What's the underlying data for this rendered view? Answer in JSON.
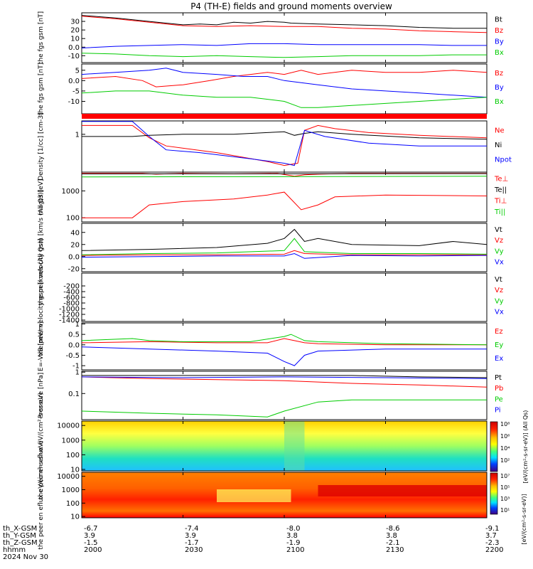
{
  "title": "P4 (TH-E) fields and ground moments overview",
  "footer": {
    "row_labels": [
      "th_X-GSM",
      "th_Y-GSM",
      "th_Z-GSM",
      "hhmm",
      "2024 Nov 30"
    ],
    "x_gsm": [
      "-6.7",
      "-7.4",
      "-8.0",
      "-8.6",
      "-9.1"
    ],
    "y_gsm": [
      "3.9",
      "3.9",
      "3.8",
      "3.8",
      "3.7"
    ],
    "z_gsm": [
      "-1.5",
      "-1.7",
      "-1.9",
      "-2.1",
      "-2.3"
    ],
    "hhmm": [
      "2000",
      "2030",
      "2100",
      "2130",
      "2200"
    ]
  },
  "colorbars": [
    {
      "label": "[eV/(cm²-s-sr-eV)] (All Qs)",
      "ticks": [
        "10⁸",
        "10⁶",
        "10⁴",
        "10²"
      ]
    },
    {
      "label": "[eV/(cm²-s-sr-eV)]",
      "ticks": [
        "10⁷",
        "10⁵",
        "10³",
        "10¹"
      ]
    }
  ],
  "chart_data": [
    {
      "type": "line",
      "ylabel": "the fgs gsm [nT]",
      "ylim": [
        -18,
        40
      ],
      "yticks": [
        -10,
        0,
        10,
        20,
        30
      ],
      "series": [
        {
          "name": "Bt",
          "color": "#000000",
          "x": [
            0,
            10,
            20,
            30,
            35,
            40,
            45,
            50,
            55,
            60,
            62,
            70,
            80,
            90,
            100,
            110,
            120
          ],
          "y": [
            37,
            34,
            30,
            26,
            27,
            26,
            29,
            28,
            30,
            29,
            28,
            27,
            26,
            25,
            23,
            22,
            22
          ]
        },
        {
          "name": "Bz",
          "color": "#ff0000",
          "x": [
            0,
            10,
            20,
            30,
            40,
            50,
            60,
            70,
            80,
            90,
            100,
            110,
            120
          ],
          "y": [
            36,
            33,
            29,
            25,
            24,
            25,
            24,
            24,
            22,
            21,
            19,
            18,
            17
          ]
        },
        {
          "name": "By",
          "color": "#0000ff",
          "x": [
            0,
            10,
            20,
            30,
            40,
            50,
            60,
            70,
            80,
            90,
            100,
            110,
            120
          ],
          "y": [
            -1,
            1,
            2,
            3,
            2,
            4,
            4,
            3,
            3,
            3,
            3,
            2,
            2
          ]
        },
        {
          "name": "Bx",
          "color": "#00cc00",
          "x": [
            0,
            10,
            20,
            30,
            40,
            50,
            60,
            70,
            80,
            90,
            100,
            110,
            120
          ],
          "y": [
            -7,
            -8,
            -10,
            -11,
            -10,
            -11,
            -12,
            -11,
            -10,
            -10,
            -10,
            -9,
            -9
          ]
        }
      ]
    },
    {
      "type": "line",
      "ylabel": "the fgs gsm [nT]",
      "ylim": [
        -16,
        8
      ],
      "yticks": [
        -10,
        -5,
        0,
        5
      ],
      "series": [
        {
          "name": "Bz",
          "color": "#ff0000",
          "x": [
            0,
            10,
            18,
            22,
            30,
            38,
            45,
            55,
            60,
            65,
            70,
            80,
            90,
            100,
            110,
            120
          ],
          "y": [
            1,
            2,
            0,
            -3,
            -2,
            0,
            2,
            4,
            3,
            5,
            3,
            5,
            4,
            4,
            5,
            4
          ]
        },
        {
          "name": "By",
          "color": "#0000ff",
          "x": [
            0,
            10,
            20,
            25,
            30,
            40,
            48,
            55,
            60,
            70,
            80,
            90,
            100,
            110,
            120
          ],
          "y": [
            3,
            4,
            5,
            6,
            4,
            3,
            2,
            2,
            0,
            -2,
            -4,
            -5,
            -6,
            -7,
            -8
          ]
        },
        {
          "name": "Bx",
          "color": "#00cc00",
          "x": [
            0,
            10,
            20,
            30,
            40,
            50,
            60,
            65,
            70,
            80,
            90,
            100,
            110,
            120
          ],
          "y": [
            -6,
            -5,
            -5,
            -7,
            -8,
            -8,
            -10,
            -13,
            -13,
            -12,
            -11,
            -10,
            -9,
            -8
          ]
        }
      ]
    },
    {
      "type": "line",
      "ylabel": "Density [1/cc] [cm-3]",
      "yscale": "log",
      "ylim": [
        0.02,
        4
      ],
      "yticks": [
        1
      ],
      "series": [
        {
          "name": "Ne",
          "color": "#ff0000",
          "x": [
            0,
            15,
            20,
            25,
            40,
            55,
            60,
            64,
            66,
            70,
            75,
            85,
            100,
            120
          ],
          "y": [
            2.5,
            2.5,
            0.7,
            0.3,
            0.15,
            0.06,
            0.04,
            0.05,
            1.5,
            2.5,
            1.8,
            1.2,
            0.9,
            0.7
          ]
        },
        {
          "name": "Ni",
          "color": "#000000",
          "x": [
            0,
            15,
            20,
            30,
            45,
            55,
            60,
            63,
            66,
            70,
            80,
            100,
            120
          ],
          "y": [
            0.8,
            0.8,
            0.9,
            1.0,
            1.0,
            1.2,
            1.3,
            0.9,
            1.1,
            1.3,
            1.0,
            0.7,
            0.6
          ]
        },
        {
          "name": "Npot",
          "color": "#0000ff",
          "x": [
            0,
            15,
            20,
            25,
            35,
            50,
            60,
            63,
            66,
            72,
            85,
            100,
            120
          ],
          "y": [
            3.8,
            3.8,
            0.8,
            0.2,
            0.15,
            0.08,
            0.05,
            0.04,
            1.5,
            0.8,
            0.4,
            0.3,
            0.3
          ]
        }
      ]
    },
    {
      "type": "line",
      "ylabel": "magt3 [eV]",
      "yscale": "log",
      "ylim": [
        70,
        5000
      ],
      "yticks": [
        100,
        1000
      ],
      "series": [
        {
          "name": "Te⊥",
          "color": "#ff0000",
          "x": [
            0,
            18,
            22,
            30,
            45,
            58,
            63,
            66,
            70,
            80,
            100,
            120
          ],
          "y": [
            4500,
            4500,
            4200,
            4500,
            4300,
            4500,
            3500,
            4000,
            4200,
            4500,
            4500,
            4500
          ]
        },
        {
          "name": "Te||",
          "color": "#000000",
          "x": [
            0,
            120
          ],
          "y": [
            4300,
            4400
          ]
        },
        {
          "name": "Ti⊥",
          "color": "#ff0000",
          "x": [
            0,
            15,
            20,
            30,
            45,
            55,
            60,
            65,
            70,
            75,
            90,
            120
          ],
          "y": [
            100,
            100,
            300,
            400,
            500,
            700,
            900,
            200,
            300,
            600,
            700,
            650
          ]
        },
        {
          "name": "Ti||",
          "color": "#00cc00",
          "x": [
            0,
            120
          ],
          "y": [
            3300,
            3500
          ]
        }
      ]
    },
    {
      "type": "line",
      "ylabel": "the peir velocity gsm [km/s (All Qs)]",
      "ylim": [
        -25,
        55
      ],
      "yticks": [
        -20,
        0,
        20,
        40
      ],
      "series": [
        {
          "name": "Vt",
          "color": "#000000",
          "x": [
            0,
            20,
            40,
            55,
            60,
            63,
            66,
            70,
            80,
            100,
            110,
            120
          ],
          "y": [
            10,
            12,
            15,
            22,
            30,
            45,
            25,
            30,
            20,
            18,
            25,
            20
          ]
        },
        {
          "name": "Vz",
          "color": "#ff0000",
          "x": [
            0,
            20,
            40,
            60,
            63,
            66,
            80,
            100,
            120
          ],
          "y": [
            2,
            3,
            3,
            4,
            10,
            5,
            3,
            3,
            3
          ]
        },
        {
          "name": "Vy",
          "color": "#00cc00",
          "x": [
            0,
            20,
            40,
            60,
            63,
            66,
            80,
            100,
            120
          ],
          "y": [
            3,
            5,
            6,
            10,
            30,
            8,
            5,
            5,
            4
          ]
        },
        {
          "name": "Vx",
          "color": "#0000ff",
          "x": [
            0,
            20,
            40,
            60,
            63,
            66,
            80,
            100,
            120
          ],
          "y": [
            -1,
            0,
            1,
            1,
            5,
            -3,
            2,
            1,
            2
          ]
        }
      ]
    },
    {
      "type": "line",
      "ylabel": "the peer velocity gsm [km/s (All Qs)]",
      "ylim": [
        -1450,
        250
      ],
      "yticks": [
        -1400,
        -1200,
        -1000,
        -800,
        -600,
        -400,
        -200
      ],
      "legend": [
        "Vt",
        "Vz",
        "Vy",
        "Vx"
      ],
      "series": []
    },
    {
      "type": "line",
      "ylabel": "E=-VxB [mV/m]",
      "ylim": [
        -1.2,
        1.05
      ],
      "yticks": [
        -1.0,
        -0.5,
        0.0,
        0.5,
        1.0
      ],
      "series": [
        {
          "name": "Ez",
          "color": "#ff0000",
          "x": [
            0,
            20,
            40,
            55,
            60,
            63,
            66,
            70,
            90,
            120
          ],
          "y": [
            0.1,
            0.15,
            0.1,
            0.1,
            0.3,
            0.2,
            0.1,
            0.05,
            0.0,
            0.0
          ]
        },
        {
          "name": "Ey",
          "color": "#00cc00",
          "x": [
            0,
            15,
            20,
            30,
            50,
            60,
            62,
            66,
            70,
            90,
            120
          ],
          "y": [
            0.2,
            0.3,
            0.2,
            0.15,
            0.15,
            0.4,
            0.5,
            0.2,
            0.15,
            0.05,
            0.0
          ]
        },
        {
          "name": "Ex",
          "color": "#0000ff",
          "x": [
            0,
            20,
            40,
            55,
            60,
            63,
            66,
            70,
            90,
            120
          ],
          "y": [
            -0.1,
            -0.2,
            -0.3,
            -0.4,
            -0.8,
            -1.0,
            -0.5,
            -0.3,
            -0.2,
            -0.2
          ]
        }
      ]
    },
    {
      "type": "line",
      "ylabel": "Pressure [nPa]",
      "yscale": "log",
      "ylim": [
        0.006,
        1.1
      ],
      "yticks": [
        0.1,
        1.0
      ],
      "series": [
        {
          "name": "Pt",
          "color": "#000000",
          "x": [
            0,
            30,
            60,
            80,
            100,
            120
          ],
          "y": [
            0.7,
            0.7,
            0.7,
            0.7,
            0.6,
            0.55
          ]
        },
        {
          "name": "Pb",
          "color": "#ff0000",
          "x": [
            0,
            20,
            40,
            60,
            80,
            100,
            120
          ],
          "y": [
            0.6,
            0.5,
            0.45,
            0.4,
            0.3,
            0.25,
            0.2
          ]
        },
        {
          "name": "Pe",
          "color": "#00cc00",
          "x": [
            0,
            20,
            40,
            55,
            60,
            70,
            80,
            100,
            120
          ],
          "y": [
            0.015,
            0.012,
            0.01,
            0.008,
            0.015,
            0.04,
            0.05,
            0.05,
            0.05
          ]
        },
        {
          "name": "Pi",
          "color": "#0000ff",
          "x": [
            0,
            30,
            60,
            90,
            120
          ],
          "y": [
            0.6,
            0.55,
            0.6,
            0.55,
            0.5
          ]
        }
      ]
    },
    {
      "type": "heatmap",
      "ylabel": "the peir en eflux eV/(cm²-s-sr-eV)",
      "yscale": "log",
      "ylim": [
        8,
        20000
      ],
      "yticks": [
        10,
        100,
        1000,
        10000
      ]
    },
    {
      "type": "heatmap",
      "ylabel": "the peer en eflux eV/(cm²-s-sr-eV)",
      "yscale": "log",
      "ylim": [
        8,
        20000
      ],
      "yticks": [
        10,
        100,
        1000,
        10000
      ]
    }
  ]
}
